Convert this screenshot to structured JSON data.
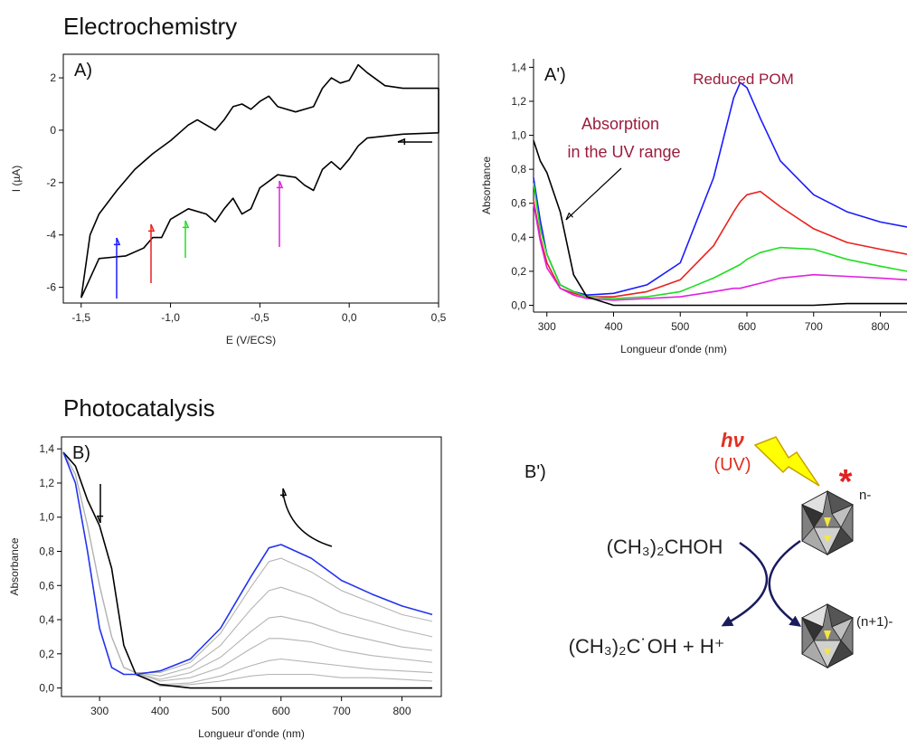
{
  "sections": [
    "Electrochemistry",
    "Photocatalysis"
  ],
  "chart_data": [
    {
      "type": "line",
      "panel": "A)",
      "xlabel": "E (V/ECS)",
      "ylabel": "I (µA)",
      "box": true,
      "xlim": [
        -1.6,
        0.5
      ],
      "ylim": [
        -6.6,
        2.9
      ],
      "xticks": [
        {
          "value": -1.5,
          "label": "-1,5"
        },
        {
          "value": -1,
          "label": "-1,0"
        },
        {
          "value": -0.5,
          "label": "-0,5"
        },
        {
          "value": 0,
          "label": "0,0"
        },
        {
          "value": 0.5,
          "label": "0,5"
        }
      ],
      "yticks": [
        -6,
        -4,
        -2,
        0,
        2
      ],
      "x": [
        -1.5,
        -1.45,
        -1.4,
        -1.3,
        -1.2,
        -1.1,
        -1.0,
        -0.95,
        -0.9,
        -0.85,
        -0.8,
        -0.75,
        -0.7,
        -0.65,
        -0.6,
        -0.55,
        -0.5,
        -0.45,
        -0.4,
        -0.3,
        -0.2,
        -0.15,
        -0.1,
        -0.05,
        0.0,
        0.05,
        0.1,
        0.2,
        0.3,
        0.5,
        0.5,
        0.3,
        0.1,
        0.05,
        0.0,
        -0.05,
        -0.1,
        -0.15,
        -0.2,
        -0.25,
        -0.3,
        -0.4,
        -0.5,
        -0.55,
        -0.6,
        -0.65,
        -0.7,
        -0.75,
        -0.8,
        -0.9,
        -1.0,
        -1.05,
        -1.1,
        -1.15,
        -1.25,
        -1.4,
        -1.5
      ],
      "series": [
        {
          "color": "#000000",
          "values": [
            -6.4,
            -4.0,
            -3.2,
            -2.3,
            -1.5,
            -0.9,
            -0.4,
            -0.1,
            0.2,
            0.4,
            0.2,
            0.0,
            0.4,
            0.9,
            1.0,
            0.8,
            1.1,
            1.3,
            0.9,
            0.7,
            0.9,
            1.6,
            2.0,
            1.8,
            1.9,
            2.5,
            2.2,
            1.7,
            1.6,
            1.6,
            -0.1,
            -0.15,
            -0.3,
            -0.6,
            -1.1,
            -1.5,
            -1.2,
            -1.5,
            -2.3,
            -2.1,
            -1.8,
            -1.7,
            -2.2,
            -3.0,
            -3.2,
            -2.6,
            -3.0,
            -3.5,
            -3.2,
            -3.0,
            -3.4,
            -4.1,
            -4.1,
            -4.5,
            -4.8,
            -4.9,
            -6.4
          ]
        }
      ]
    },
    {
      "type": "line",
      "panel": "A')",
      "xlabel": "Longueur d'onde (nm)",
      "ylabel": "Absorbance",
      "box": false,
      "annotations": [
        "Reduced POM",
        "Absorption",
        "in the UV range"
      ],
      "xlim": [
        280,
        840
      ],
      "ylim": [
        -0.04,
        1.45
      ],
      "xticks": [
        300,
        400,
        500,
        600,
        700,
        800
      ],
      "yticks": [
        {
          "value": 0,
          "label": "0,0"
        },
        {
          "value": 0.2,
          "label": "0,2"
        },
        {
          "value": 0.4,
          "label": "0,4"
        },
        {
          "value": 0.6,
          "label": "0,6"
        },
        {
          "value": 0.8,
          "label": "0,8"
        },
        {
          "value": 1.0,
          "label": "1,0"
        },
        {
          "value": 1.2,
          "label": "1,2"
        },
        {
          "value": 1.4,
          "label": "1,4"
        }
      ],
      "x": [
        280,
        290,
        300,
        320,
        340,
        360,
        400,
        450,
        500,
        550,
        580,
        590,
        600,
        620,
        650,
        700,
        750,
        800,
        840
      ],
      "series": [
        {
          "color": "#1a1aff",
          "values": [
            0.75,
            0.5,
            0.3,
            0.12,
            0.08,
            0.06,
            0.07,
            0.12,
            0.25,
            0.75,
            1.22,
            1.31,
            1.28,
            1.1,
            0.85,
            0.65,
            0.55,
            0.49,
            0.46
          ]
        },
        {
          "color": "#e8211d",
          "values": [
            0.62,
            0.4,
            0.25,
            0.1,
            0.07,
            0.05,
            0.05,
            0.08,
            0.15,
            0.35,
            0.55,
            0.61,
            0.65,
            0.67,
            0.58,
            0.45,
            0.37,
            0.33,
            0.3
          ]
        },
        {
          "color": "#22dd22",
          "values": [
            0.72,
            0.45,
            0.3,
            0.12,
            0.08,
            0.05,
            0.04,
            0.05,
            0.08,
            0.16,
            0.22,
            0.24,
            0.27,
            0.31,
            0.34,
            0.33,
            0.27,
            0.23,
            0.2
          ]
        },
        {
          "color": "#e020e0",
          "values": [
            0.6,
            0.38,
            0.22,
            0.1,
            0.06,
            0.04,
            0.03,
            0.04,
            0.05,
            0.08,
            0.1,
            0.1,
            0.11,
            0.13,
            0.16,
            0.18,
            0.17,
            0.16,
            0.15
          ]
        },
        {
          "color": "#000000",
          "values": [
            0.97,
            0.85,
            0.78,
            0.55,
            0.18,
            0.05,
            0.0,
            0.0,
            0.0,
            0.0,
            0.0,
            0.0,
            0.0,
            0.0,
            0.0,
            0.0,
            0.01,
            0.01,
            0.01
          ]
        }
      ]
    },
    {
      "type": "line",
      "panel": "B)",
      "xlabel": "Longueur d'onde (nm)",
      "ylabel": "Absorbance",
      "box": true,
      "xlim": [
        237,
        865
      ],
      "ylim": [
        -0.05,
        1.47
      ],
      "xticks": [
        300,
        400,
        500,
        600,
        700,
        800
      ],
      "yticks": [
        {
          "value": 0,
          "label": "0,0"
        },
        {
          "value": 0.2,
          "label": "0,2"
        },
        {
          "value": 0.4,
          "label": "0,4"
        },
        {
          "value": 0.6,
          "label": "0,6"
        },
        {
          "value": 0.8,
          "label": "0,8"
        },
        {
          "value": 1.0,
          "label": "1,0"
        },
        {
          "value": 1.2,
          "label": "1,2"
        },
        {
          "value": 1.4,
          "label": "1,4"
        }
      ],
      "x": [
        240,
        260,
        280,
        300,
        320,
        340,
        360,
        400,
        450,
        500,
        550,
        580,
        600,
        650,
        700,
        750,
        800,
        850
      ],
      "series": [
        {
          "color": "#b4b4b4",
          "values": [
            1.38,
            1.25,
            0.95,
            0.6,
            0.3,
            0.12,
            0.09,
            0.09,
            0.15,
            0.32,
            0.59,
            0.74,
            0.76,
            0.68,
            0.57,
            0.5,
            0.43,
            0.39
          ]
        },
        {
          "color": "#b4b4b4",
          "values": [
            1.38,
            1.25,
            0.95,
            0.6,
            0.3,
            0.12,
            0.09,
            0.07,
            0.12,
            0.25,
            0.46,
            0.57,
            0.59,
            0.53,
            0.44,
            0.39,
            0.34,
            0.3
          ]
        },
        {
          "color": "#b4b4b4",
          "values": [
            1.38,
            1.25,
            0.95,
            0.6,
            0.3,
            0.12,
            0.09,
            0.05,
            0.09,
            0.18,
            0.33,
            0.41,
            0.42,
            0.38,
            0.32,
            0.28,
            0.24,
            0.22
          ]
        },
        {
          "color": "#b4b4b4",
          "values": [
            1.38,
            1.25,
            0.95,
            0.6,
            0.3,
            0.12,
            0.09,
            0.04,
            0.06,
            0.12,
            0.23,
            0.29,
            0.29,
            0.27,
            0.22,
            0.19,
            0.17,
            0.15
          ]
        },
        {
          "color": "#b4b4b4",
          "values": [
            1.38,
            1.25,
            0.95,
            0.6,
            0.3,
            0.12,
            0.09,
            0.02,
            0.03,
            0.07,
            0.13,
            0.16,
            0.17,
            0.15,
            0.13,
            0.11,
            0.1,
            0.09
          ]
        },
        {
          "color": "#b4b4b4",
          "values": [
            1.38,
            1.25,
            0.95,
            0.6,
            0.3,
            0.12,
            0.09,
            0.01,
            0.02,
            0.04,
            0.07,
            0.08,
            0.08,
            0.08,
            0.06,
            0.06,
            0.05,
            0.04
          ]
        },
        {
          "color": "#000000",
          "values": [
            1.38,
            1.3,
            1.1,
            0.95,
            0.7,
            0.25,
            0.08,
            0.02,
            0.0,
            0.0,
            0.0,
            0.0,
            0.0,
            0.0,
            0.0,
            0.0,
            0.0,
            0.0
          ]
        },
        {
          "color": "#2233ee",
          "values": [
            1.38,
            1.2,
            0.8,
            0.35,
            0.12,
            0.08,
            0.08,
            0.1,
            0.17,
            0.35,
            0.65,
            0.82,
            0.84,
            0.76,
            0.63,
            0.55,
            0.48,
            0.43
          ]
        }
      ]
    }
  ],
  "diagram": {
    "label": "B')",
    "light": "hν",
    "light_source": "(UV)",
    "excited": "*",
    "charge_top": "n-",
    "charge_bottom": "(n+1)-",
    "reactant": "(CH₃)₂CHOH",
    "products": "(CH₃)₂C˙OH + H⁺"
  }
}
